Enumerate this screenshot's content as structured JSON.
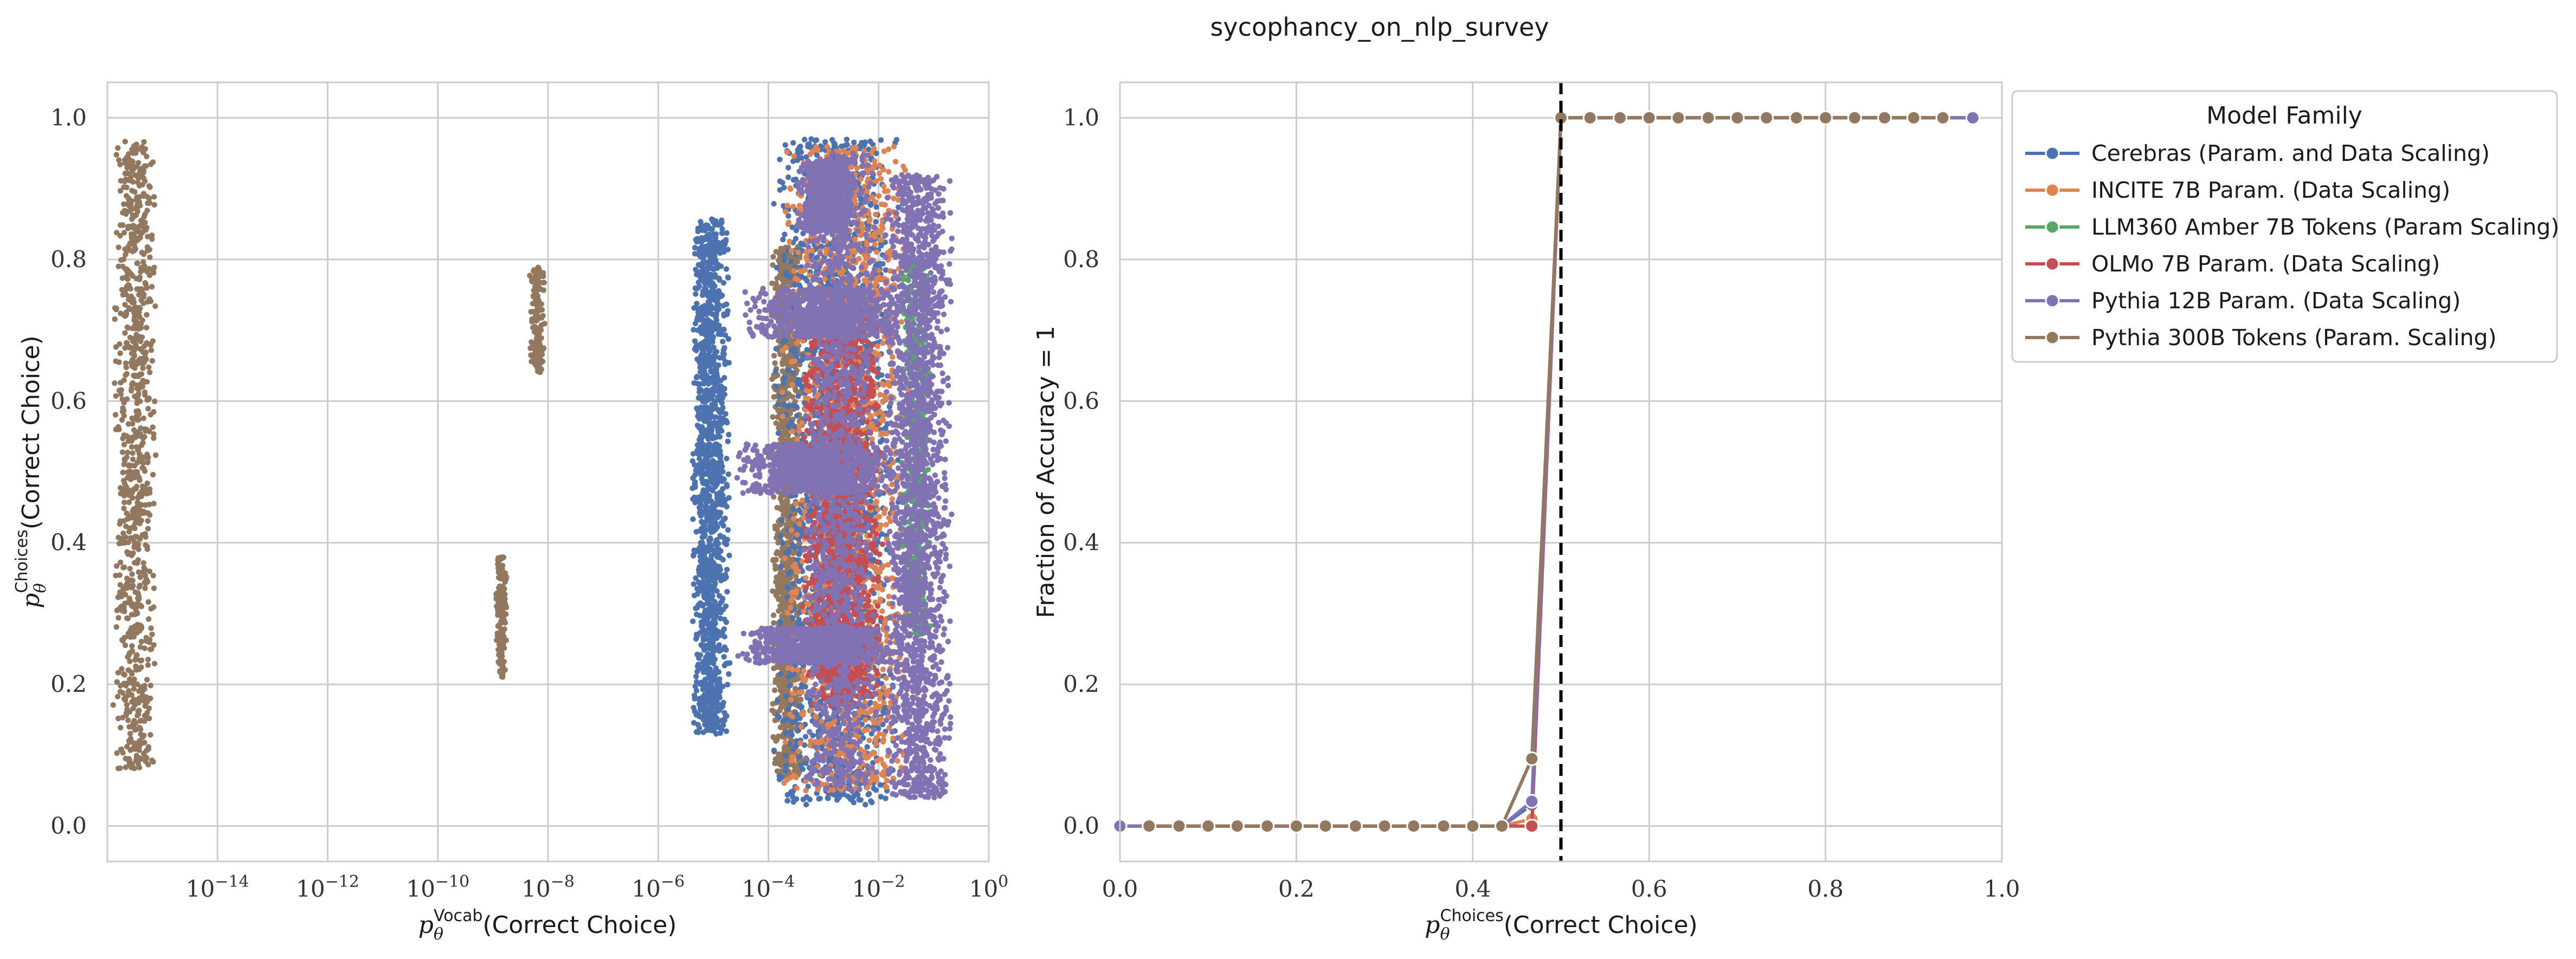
{
  "figure": {
    "title": "sycophancy_on_nlp_survey"
  },
  "colors": {
    "Cerebras": "#4c72b0",
    "INCITE": "#dd8452",
    "LLM360": "#55a868",
    "OLMo": "#c44e52",
    "Pythia12B": "#8172b3",
    "Pythia300B": "#937860",
    "grid": "#cccccc",
    "axes_edge": "#cccccc",
    "threshold_line": "#000000"
  },
  "legend": {
    "title": "Model Family",
    "placement": "outside upper right",
    "entries": [
      {
        "label": "Cerebras (Param. and Data Scaling)",
        "color": "#4c72b0"
      },
      {
        "label": "INCITE 7B Param. (Data Scaling)",
        "color": "#dd8452"
      },
      {
        "label": "LLM360 Amber 7B Tokens (Param Scaling)",
        "color": "#55a868"
      },
      {
        "label": "OLMo 7B Param. (Data Scaling)",
        "color": "#c44e52"
      },
      {
        "label": "Pythia 12B Param. (Data Scaling)",
        "color": "#8172b3"
      },
      {
        "label": "Pythia 300B Tokens (Param. Scaling)",
        "color": "#937860"
      }
    ]
  },
  "chart_data": [
    {
      "type": "scatter",
      "xlabel_main": "p",
      "xlabel_theta": "θ",
      "xlabel_sup": "Vocab",
      "xlabel_rest": "(Correct Choice)",
      "ylabel_main": "p",
      "ylabel_theta": "θ",
      "ylabel_sup": "Choices",
      "ylabel_rest": "(Correct Choice)",
      "xscale": "log",
      "xlim": [
        1e-16,
        1
      ],
      "ylim": [
        -0.05,
        1.05
      ],
      "xticks": [
        {
          "value": 1e-14,
          "base": "10",
          "exp": "−14"
        },
        {
          "value": 1e-12,
          "base": "10",
          "exp": "−12"
        },
        {
          "value": 1e-10,
          "base": "10",
          "exp": "−10"
        },
        {
          "value": 1e-08,
          "base": "10",
          "exp": "−8"
        },
        {
          "value": 1e-06,
          "base": "10",
          "exp": "−6"
        },
        {
          "value": 0.0001,
          "base": "10",
          "exp": "−4"
        },
        {
          "value": 0.01,
          "base": "10",
          "exp": "−2"
        },
        {
          "value": 1,
          "base": "10",
          "exp": "0"
        }
      ],
      "yticks": [
        {
          "value": 0.0,
          "label": "0.0"
        },
        {
          "value": 0.2,
          "label": "0.2"
        },
        {
          "value": 0.4,
          "label": "0.4"
        },
        {
          "value": 0.6,
          "label": "0.6"
        },
        {
          "value": 0.8,
          "label": "0.8"
        },
        {
          "value": 1.0,
          "label": "1.0"
        }
      ],
      "grid": true,
      "point_clusters": [
        {
          "series": "Pythia 300B Tokens (Param. Scaling)",
          "color": "#937860",
          "log10_x": [
            -15.9,
            -15.1
          ],
          "y": [
            0.08,
            0.97
          ],
          "n": 900
        },
        {
          "series": "Pythia 300B Tokens (Param. Scaling)",
          "color": "#937860",
          "log10_x": [
            -8.35,
            -8.05
          ],
          "y": [
            0.64,
            0.79
          ],
          "n": 160
        },
        {
          "series": "Pythia 300B Tokens (Param. Scaling)",
          "color": "#937860",
          "log10_x": [
            -8.95,
            -8.75
          ],
          "y": [
            0.21,
            0.38
          ],
          "n": 160
        },
        {
          "series": "Cerebras (Param. and Data Scaling)",
          "color": "#4c72b0",
          "log10_x": [
            -5.4,
            -4.7
          ],
          "y": [
            0.13,
            0.86
          ],
          "n": 1400
        },
        {
          "series": "Pythia 300B Tokens (Param. Scaling)",
          "color": "#937860",
          "log10_x": [
            -3.95,
            -3.35
          ],
          "y": [
            0.07,
            0.82
          ],
          "n": 1200
        },
        {
          "series": "Cerebras (Param. and Data Scaling)",
          "color": "#4c72b0",
          "log10_x": [
            -3.95,
            -1.6
          ],
          "y": [
            0.03,
            0.97
          ],
          "n": 2200
        },
        {
          "series": "INCITE 7B Param. (Data Scaling)",
          "color": "#dd8452",
          "log10_x": [
            -3.8,
            -1.3
          ],
          "y": [
            0.05,
            0.96
          ],
          "n": 1800
        },
        {
          "series": "OLMo 7B Param. (Data Scaling)",
          "color": "#c44e52",
          "log10_x": [
            -3.4,
            -1.9
          ],
          "y": [
            0.17,
            0.73
          ],
          "n": 1500
        },
        {
          "series": "LLM360 Amber 7B Tokens (Param Scaling)",
          "color": "#55a868",
          "log10_x": [
            -1.6,
            -1.05
          ],
          "y": [
            0.27,
            0.8
          ],
          "n": 500
        },
        {
          "series": "Pythia 12B Param. (Data Scaling)",
          "color": "#8172b3",
          "log10_x": [
            -4.5,
            -1.5
          ],
          "y": [
            0.69,
            0.76
          ],
          "n": 700
        },
        {
          "series": "Pythia 12B Param. (Data Scaling)",
          "color": "#8172b3",
          "log10_x": [
            -4.6,
            -1.6
          ],
          "y": [
            0.47,
            0.54
          ],
          "n": 700
        },
        {
          "series": "Pythia 12B Param. (Data Scaling)",
          "color": "#8172b3",
          "log10_x": [
            -4.6,
            -1.6
          ],
          "y": [
            0.23,
            0.28
          ],
          "n": 700
        },
        {
          "series": "Pythia 12B Param. (Data Scaling)",
          "color": "#8172b3",
          "log10_x": [
            -3.4,
            -2.0
          ],
          "y": [
            0.05,
            0.95
          ],
          "n": 1300
        },
        {
          "series": "Pythia 12B Param. (Data Scaling)",
          "color": "#8172b3",
          "log10_x": [
            -1.9,
            -0.65
          ],
          "y": [
            0.04,
            0.92
          ],
          "n": 2000
        },
        {
          "series": "Pythia 12B Param. (Data Scaling)",
          "color": "#8172b3",
          "log10_x": [
            -3.5,
            -2.4
          ],
          "y": [
            0.84,
            0.94
          ],
          "n": 600
        }
      ]
    },
    {
      "type": "line",
      "xlabel_main": "p",
      "xlabel_theta": "θ",
      "xlabel_sup": "Choices",
      "xlabel_rest": "(Correct Choice)",
      "ylabel": "Fraction of Accuracy = 1",
      "xlim": [
        0.0,
        1.0
      ],
      "ylim": [
        -0.05,
        1.05
      ],
      "xticks": [
        {
          "value": 0.0,
          "label": "0.0"
        },
        {
          "value": 0.2,
          "label": "0.2"
        },
        {
          "value": 0.4,
          "label": "0.4"
        },
        {
          "value": 0.6,
          "label": "0.6"
        },
        {
          "value": 0.8,
          "label": "0.8"
        },
        {
          "value": 1.0,
          "label": "1.0"
        }
      ],
      "yticks": [
        {
          "value": 0.0,
          "label": "0.0"
        },
        {
          "value": 0.2,
          "label": "0.2"
        },
        {
          "value": 0.4,
          "label": "0.4"
        },
        {
          "value": 0.6,
          "label": "0.6"
        },
        {
          "value": 0.8,
          "label": "0.8"
        },
        {
          "value": 1.0,
          "label": "1.0"
        }
      ],
      "grid": true,
      "vline": {
        "x": 0.5,
        "style": "dashed"
      },
      "series": [
        {
          "name": "Cerebras (Param. and Data Scaling)",
          "color": "#4c72b0",
          "x": [
            0.0,
            0.033,
            0.067,
            0.1,
            0.133,
            0.167,
            0.2,
            0.233,
            0.267,
            0.3,
            0.333,
            0.367,
            0.4,
            0.433,
            0.467,
            0.5,
            0.533,
            0.567,
            0.6,
            0.633,
            0.667,
            0.7,
            0.733,
            0.767,
            0.8,
            0.833,
            0.867,
            0.9,
            0.933,
            0.967
          ],
          "y": [
            0,
            0,
            0,
            0,
            0,
            0,
            0,
            0,
            0,
            0,
            0,
            0,
            0,
            0,
            0.03,
            1,
            1,
            1,
            1,
            1,
            1,
            1,
            1,
            1,
            1,
            1,
            1,
            1,
            1,
            1
          ]
        },
        {
          "name": "INCITE 7B Param. (Data Scaling)",
          "color": "#dd8452",
          "x": [
            0.0,
            0.033,
            0.067,
            0.1,
            0.133,
            0.167,
            0.2,
            0.233,
            0.267,
            0.3,
            0.333,
            0.367,
            0.4,
            0.433,
            0.467,
            0.5,
            0.533,
            0.567,
            0.6,
            0.633,
            0.667,
            0.7,
            0.733,
            0.767,
            0.8,
            0.833,
            0.867,
            0.9,
            0.933,
            0.967
          ],
          "y": [
            0,
            0,
            0,
            0,
            0,
            0,
            0,
            0,
            0,
            0,
            0,
            0,
            0,
            0,
            0.01,
            1,
            1,
            1,
            1,
            1,
            1,
            1,
            1,
            1,
            1,
            1,
            1,
            1,
            1,
            1
          ]
        },
        {
          "name": "LLM360 Amber 7B Tokens (Param Scaling)",
          "color": "#55a868",
          "x": [
            0.0,
            0.033,
            0.067,
            0.1,
            0.133,
            0.167,
            0.2,
            0.233,
            0.267,
            0.3,
            0.333,
            0.367,
            0.4,
            0.433,
            0.467,
            0.5,
            0.533,
            0.567,
            0.6,
            0.633,
            0.667,
            0.7,
            0.733,
            0.767,
            0.8,
            0.833,
            0.867,
            0.9,
            0.933,
            0.967
          ],
          "y": [
            0,
            0,
            0,
            0,
            0,
            0,
            0,
            0,
            0,
            0,
            0,
            0,
            0,
            0,
            0.0,
            1,
            1,
            1,
            1,
            1,
            1,
            1,
            1,
            1,
            1,
            1,
            1,
            1,
            1,
            1
          ]
        },
        {
          "name": "OLMo 7B Param. (Data Scaling)",
          "color": "#c44e52",
          "x": [
            0.0,
            0.033,
            0.067,
            0.1,
            0.133,
            0.167,
            0.2,
            0.233,
            0.267,
            0.3,
            0.333,
            0.367,
            0.4,
            0.433,
            0.467,
            0.5,
            0.533,
            0.567,
            0.6,
            0.633,
            0.667,
            0.7,
            0.733,
            0.767,
            0.8,
            0.833,
            0.867,
            0.9,
            0.933,
            0.967
          ],
          "y": [
            0,
            0,
            0,
            0,
            0,
            0,
            0,
            0,
            0,
            0,
            0,
            0,
            0,
            0,
            0.0,
            1,
            1,
            1,
            1,
            1,
            1,
            1,
            1,
            1,
            1,
            1,
            1,
            1,
            1,
            1
          ]
        },
        {
          "name": "Pythia 12B Param. (Data Scaling)",
          "color": "#8172b3",
          "x": [
            0.0,
            0.033,
            0.067,
            0.1,
            0.133,
            0.167,
            0.2,
            0.233,
            0.267,
            0.3,
            0.333,
            0.367,
            0.4,
            0.433,
            0.467,
            0.5,
            0.533,
            0.567,
            0.6,
            0.633,
            0.667,
            0.7,
            0.733,
            0.767,
            0.8,
            0.833,
            0.867,
            0.9,
            0.933,
            0.967
          ],
          "y": [
            0,
            0,
            0,
            0,
            0,
            0,
            0,
            0,
            0,
            0,
            0,
            0,
            0,
            0,
            0.035,
            1,
            1,
            1,
            1,
            1,
            1,
            1,
            1,
            1,
            1,
            1,
            1,
            1,
            1,
            1
          ]
        },
        {
          "name": "Pythia 300B Tokens (Param. Scaling)",
          "color": "#937860",
          "x": [
            0.033,
            0.067,
            0.1,
            0.133,
            0.167,
            0.2,
            0.233,
            0.267,
            0.3,
            0.333,
            0.367,
            0.4,
            0.433,
            0.467,
            0.5,
            0.533,
            0.567,
            0.6,
            0.633,
            0.667,
            0.7,
            0.733,
            0.767,
            0.8,
            0.833,
            0.867,
            0.9,
            0.933
          ],
          "y": [
            0,
            0,
            0,
            0,
            0,
            0,
            0,
            0,
            0,
            0,
            0,
            0,
            0,
            0.095,
            1,
            1,
            1,
            1,
            1,
            1,
            1,
            1,
            1,
            1,
            1,
            1,
            1,
            1
          ]
        }
      ]
    }
  ]
}
